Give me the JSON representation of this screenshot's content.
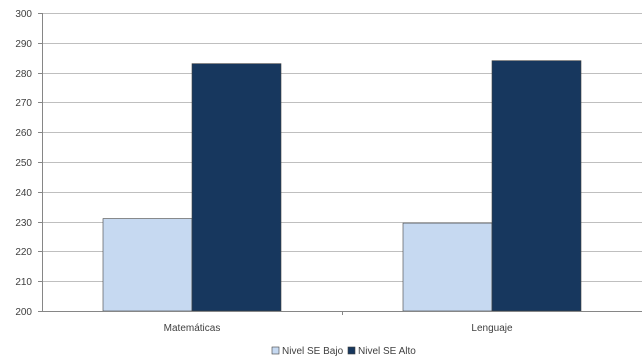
{
  "chart_data": {
    "type": "bar",
    "categories": [
      "Matemáticas",
      "Lenguaje"
    ],
    "series": [
      {
        "name": "Nivel SE Bajo",
        "values": [
          231,
          229.5
        ],
        "color": "#c6d9f1"
      },
      {
        "name": "Nivel SE Alto",
        "values": [
          283,
          284
        ],
        "color": "#17375e"
      }
    ],
    "ylim": [
      200,
      300
    ],
    "yticks": [
      200,
      210,
      220,
      230,
      240,
      250,
      260,
      270,
      280,
      290,
      300
    ],
    "grid": true,
    "legend_position": "bottom",
    "title": "",
    "xlabel": "",
    "ylabel": ""
  }
}
